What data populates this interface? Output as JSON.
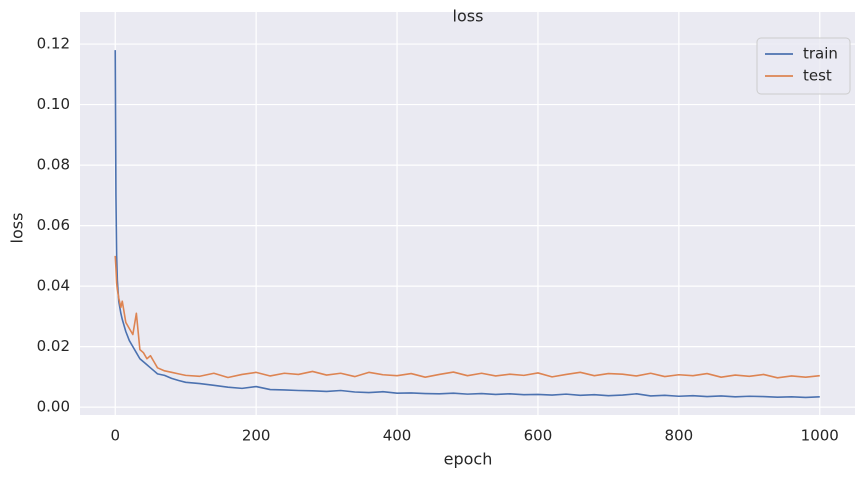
{
  "chart_data": {
    "type": "line",
    "title": "loss",
    "x_label": "epoch",
    "y_label": "loss",
    "x": [
      0,
      1,
      2,
      3,
      5,
      8,
      10,
      15,
      20,
      25,
      30,
      35,
      40,
      45,
      50,
      55,
      60,
      70,
      80,
      90,
      100,
      120,
      140,
      160,
      180,
      200,
      220,
      240,
      260,
      280,
      300,
      320,
      340,
      360,
      380,
      400,
      420,
      440,
      460,
      480,
      500,
      520,
      540,
      560,
      580,
      600,
      620,
      640,
      660,
      680,
      700,
      720,
      740,
      760,
      780,
      800,
      820,
      840,
      860,
      880,
      900,
      920,
      940,
      960,
      980,
      1000
    ],
    "series": [
      {
        "name": "train",
        "color": "#4c72b0",
        "values": [
          0.118,
          0.07,
          0.05,
          0.042,
          0.035,
          0.031,
          0.029,
          0.025,
          0.022,
          0.02,
          0.018,
          0.016,
          0.015,
          0.014,
          0.013,
          0.012,
          0.011,
          0.0105,
          0.0095,
          0.0088,
          0.0082,
          0.0078,
          0.0072,
          0.0066,
          0.0062,
          0.0068,
          0.0058,
          0.0057,
          0.0055,
          0.0054,
          0.0052,
          0.0055,
          0.005,
          0.0048,
          0.0051,
          0.0046,
          0.0047,
          0.0045,
          0.0044,
          0.0046,
          0.0043,
          0.0045,
          0.0042,
          0.0044,
          0.0041,
          0.0042,
          0.004,
          0.0043,
          0.0039,
          0.0041,
          0.0038,
          0.004,
          0.0044,
          0.0037,
          0.0039,
          0.0036,
          0.0038,
          0.0035,
          0.0037,
          0.0034,
          0.0036,
          0.0035,
          0.0033,
          0.0034,
          0.0032,
          0.0034
        ]
      },
      {
        "name": "test",
        "color": "#dd8452",
        "values": [
          0.05,
          0.046,
          0.041,
          0.039,
          0.036,
          0.033,
          0.035,
          0.028,
          0.026,
          0.024,
          0.031,
          0.019,
          0.018,
          0.016,
          0.017,
          0.015,
          0.013,
          0.012,
          0.0115,
          0.011,
          0.0105,
          0.0102,
          0.0112,
          0.0098,
          0.0108,
          0.0115,
          0.0103,
          0.0112,
          0.0108,
          0.0118,
          0.0106,
          0.0112,
          0.0101,
          0.0115,
          0.0107,
          0.0104,
          0.0111,
          0.0099,
          0.0108,
          0.0116,
          0.0104,
          0.0112,
          0.0103,
          0.0109,
          0.0105,
          0.0113,
          0.01,
          0.0108,
          0.0115,
          0.0104,
          0.0111,
          0.0109,
          0.0103,
          0.0112,
          0.0101,
          0.0107,
          0.0104,
          0.0111,
          0.0099,
          0.0106,
          0.0102,
          0.0108,
          0.0097,
          0.0103,
          0.0099,
          0.0104
        ]
      }
    ],
    "xlim": [
      -50,
      1050
    ],
    "xticks": [
      0,
      200,
      400,
      600,
      800,
      1000
    ],
    "ylim": [
      -0.0026,
      0.1306
    ],
    "yticks": [
      {
        "value": 0,
        "label": "0.00"
      },
      0.02,
      0.04,
      0.06,
      0.08,
      {
        "value": 0.1,
        "label": "0.10"
      },
      0.12
    ],
    "grid": true,
    "legend": "upper-right"
  }
}
